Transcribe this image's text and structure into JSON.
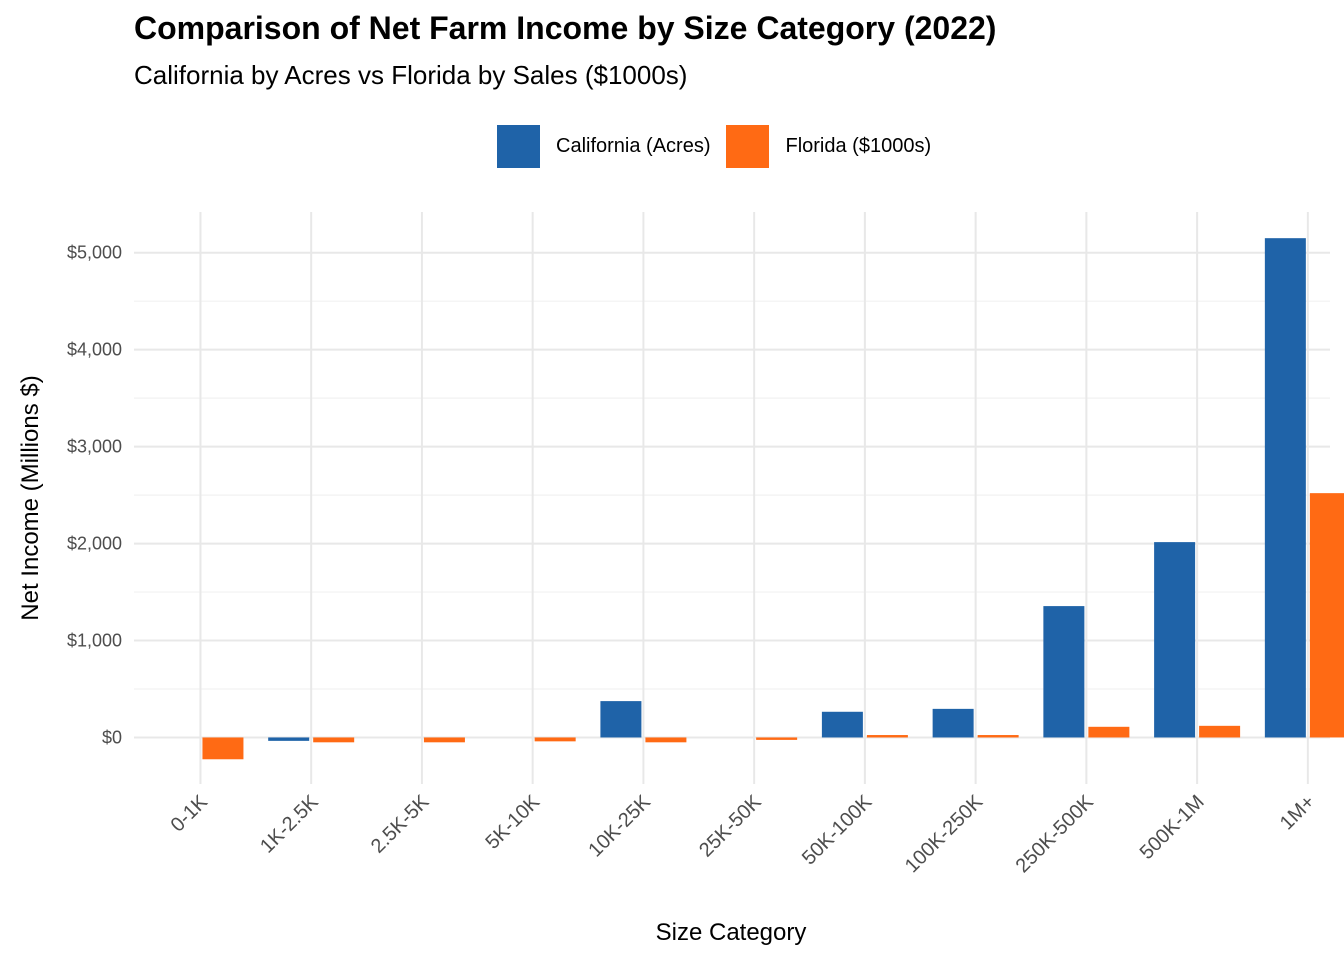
{
  "chart_data": {
    "type": "bar",
    "title": "Comparison of Net Farm Income by Size Category (2022)",
    "subtitle": "California by Acres vs Florida by Sales ($1000s)",
    "xlabel": "Size Category",
    "ylabel": "Net Income (Millions $)",
    "categories": [
      "0-1K",
      "1K-2.5K",
      "2.5K-5K",
      "5K-10K",
      "10K-25K",
      "25K-50K",
      "50K-100K",
      "100K-250K",
      "250K-500K",
      "500K-1M",
      "1M+"
    ],
    "series": [
      {
        "name": "California (Acres)",
        "color": "#1f63a8",
        "values": [
          0,
          -35,
          0,
          0,
          375,
          0,
          265,
          295,
          1355,
          2015,
          5150
        ]
      },
      {
        "name": "Florida ($1000s)",
        "color": "#ff6a14",
        "values": [
          -225,
          -50,
          -50,
          -40,
          -50,
          -25,
          25,
          25,
          110,
          120,
          2520
        ]
      }
    ],
    "ylim": [
      -480,
      5420
    ],
    "yticks": [
      0,
      1000,
      2000,
      3000,
      4000,
      5000
    ],
    "ytick_labels": [
      "$0",
      "$1,000",
      "$2,000",
      "$3,000",
      "$4,000",
      "$5,000"
    ],
    "grid": true,
    "legend_position": "top"
  }
}
